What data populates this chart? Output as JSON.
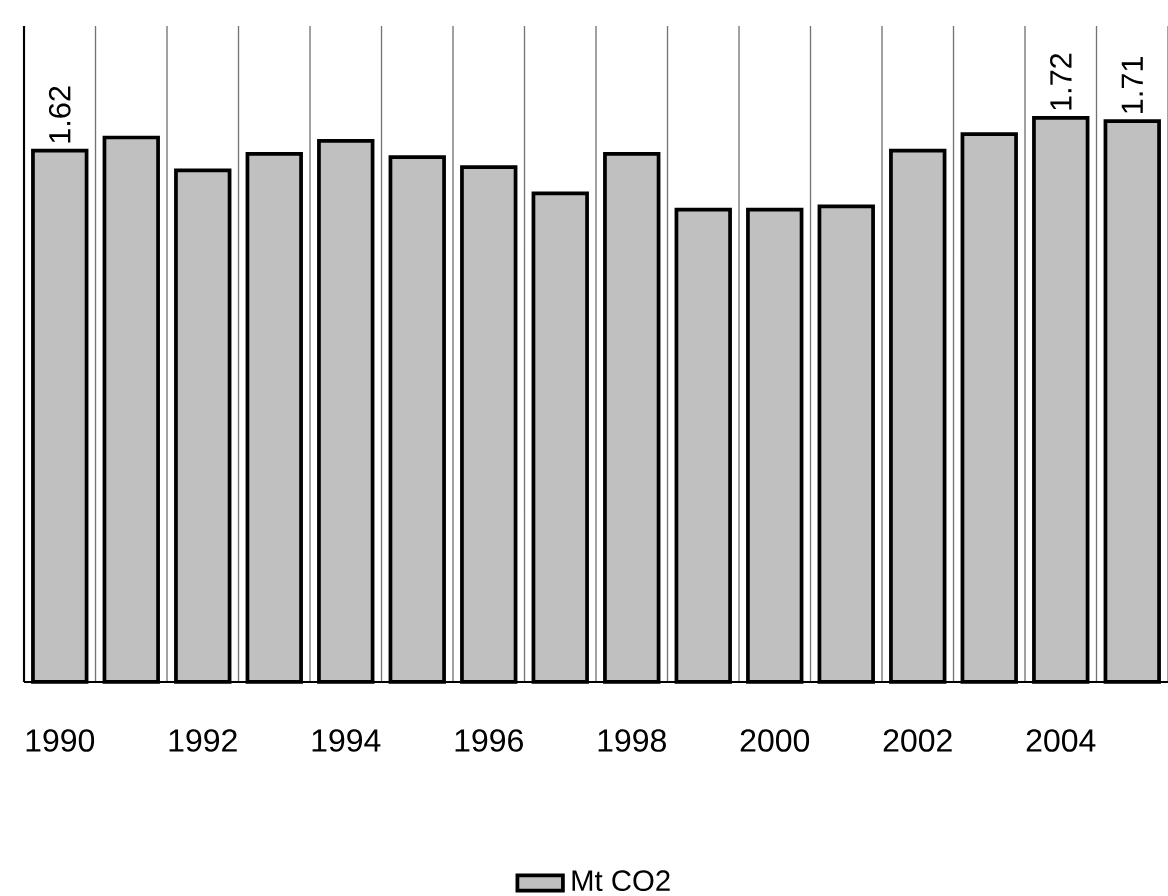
{
  "chart_data": {
    "type": "bar",
    "categories": [
      "1990",
      null,
      "1992",
      null,
      "1994",
      null,
      "1996",
      null,
      "1998",
      null,
      "2000",
      null,
      "2002",
      null,
      "2004",
      null
    ],
    "series": [
      {
        "name": "Mt CO2",
        "color": "#c0c0c0",
        "values": [
          1.62,
          1.66,
          1.56,
          1.61,
          1.65,
          1.6,
          1.57,
          1.49,
          1.61,
          1.44,
          1.44,
          1.45,
          1.62,
          1.67,
          1.72,
          1.71
        ],
        "value_labels": [
          "1.62",
          null,
          null,
          null,
          null,
          null,
          null,
          null,
          null,
          null,
          null,
          null,
          null,
          null,
          "1.72",
          "1.71"
        ]
      }
    ],
    "ylim": [
      0,
      2
    ],
    "tick_labels": "x",
    "grid": "x",
    "legend": "bottom"
  }
}
